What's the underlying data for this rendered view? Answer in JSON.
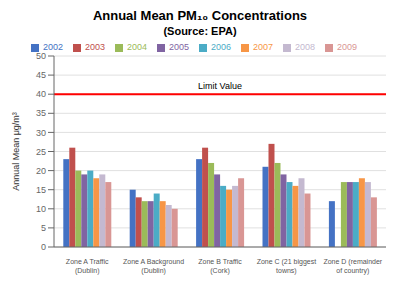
{
  "chart_data": {
    "type": "bar",
    "title": "Annual Mean PM₁₀ Concentrations",
    "subtitle": "(Source: EPA)",
    "ylabel": "Annual Mean μg/m³",
    "categories": [
      "Zone A Traffic\n(Dublin)",
      "Zone A Background\n(Dublin)",
      "Zone B Traffic\n(Cork)",
      "Zone C (21 biggest\ntowns)",
      "Zone D (remainder\nof country)"
    ],
    "series": [
      {
        "name": "2002",
        "color": "#4472C4",
        "values": [
          23,
          15,
          23,
          21,
          12
        ]
      },
      {
        "name": "2003",
        "color": "#C0504D",
        "values": [
          26,
          13,
          26,
          27,
          0
        ]
      },
      {
        "name": "2004",
        "color": "#9BBB59",
        "values": [
          20,
          12,
          22,
          22,
          17
        ]
      },
      {
        "name": "2005",
        "color": "#8064A2",
        "values": [
          19,
          12,
          19,
          19,
          17
        ]
      },
      {
        "name": "2006",
        "color": "#4BACC6",
        "values": [
          20,
          14,
          16,
          17,
          17
        ]
      },
      {
        "name": "2007",
        "color": "#F79646",
        "values": [
          18,
          12,
          15,
          16,
          18
        ]
      },
      {
        "name": "2008",
        "color": "#C4B9D0",
        "values": [
          19,
          11,
          16,
          18,
          17
        ]
      },
      {
        "name": "2009",
        "color": "#D99694",
        "values": [
          17,
          10,
          18,
          14,
          13
        ]
      }
    ],
    "reference_line": {
      "value": 40,
      "label": "Limit Value",
      "color": "red"
    },
    "ylim": [
      0,
      50
    ],
    "yticks": [
      0,
      5,
      10,
      15,
      20,
      25,
      30,
      35,
      40,
      45,
      50
    ],
    "grid": true,
    "legend": "top"
  }
}
